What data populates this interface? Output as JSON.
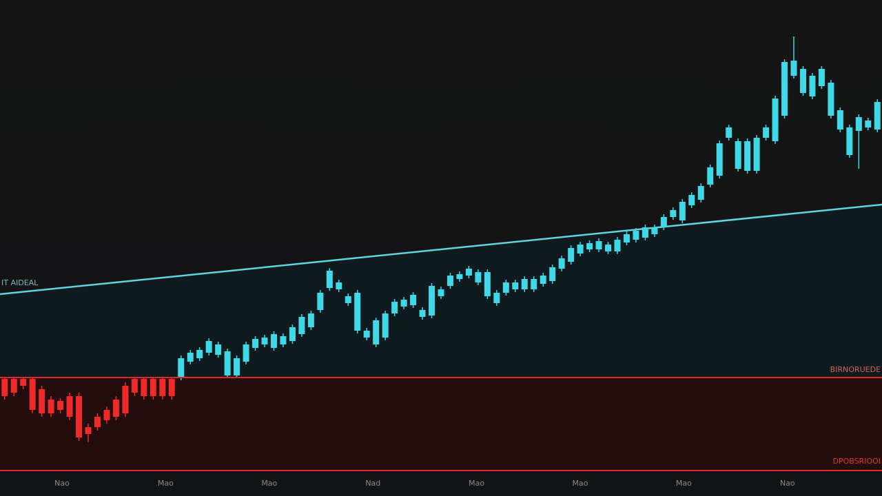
{
  "chart_data": {
    "type": "candlestick",
    "open": [
      140,
      140,
      140,
      140,
      125,
      110,
      108,
      115,
      115,
      70,
      85,
      95,
      110,
      130,
      140,
      140,
      140,
      140,
      140,
      142,
      165,
      170,
      178,
      175,
      145,
      145,
      165,
      185,
      190,
      185,
      190,
      195,
      205,
      215,
      240,
      272,
      270,
      250,
      210,
      200,
      190,
      200,
      235,
      245,
      247,
      230,
      232,
      260,
      275,
      285,
      290,
      280,
      260,
      250,
      265,
      270,
      270,
      270,
      278,
      282,
      300,
      310,
      322,
      328,
      328,
      325,
      325,
      338,
      342,
      345,
      350,
      360,
      375,
      370,
      392,
      400,
      422,
      435,
      490,
      445,
      442,
      442,
      490,
      485,
      522,
      580,
      555,
      550,
      565,
      522,
      502,
      465,
      500,
      505,
      502
    ],
    "high": [
      142,
      142,
      142,
      142,
      130,
      115,
      112,
      120,
      120,
      75,
      90,
      100,
      115,
      135,
      142,
      142,
      142,
      142,
      142,
      174,
      182,
      186,
      199,
      194,
      184,
      174,
      194,
      202,
      204,
      209,
      206,
      219,
      234,
      239,
      269,
      301,
      284,
      264,
      269,
      214,
      229,
      239,
      256,
      259,
      266,
      244,
      279,
      274,
      294,
      296,
      304,
      299,
      299,
      269,
      284,
      284,
      289,
      289,
      294,
      306,
      319,
      334,
      339,
      341,
      344,
      339,
      346,
      354,
      359,
      364,
      364,
      379,
      389,
      401,
      411,
      424,
      451,
      486,
      509,
      489,
      489,
      494,
      509,
      551,
      604,
      637,
      594,
      584,
      594,
      574,
      534,
      509,
      524,
      519,
      546
    ],
    "low": [
      110,
      115,
      125,
      90,
      85,
      85,
      90,
      80,
      50,
      48,
      65,
      75,
      80,
      85,
      115,
      110,
      110,
      110,
      110,
      138,
      161,
      166,
      174,
      171,
      141,
      141,
      161,
      181,
      186,
      181,
      186,
      191,
      201,
      211,
      236,
      268,
      266,
      246,
      206,
      196,
      186,
      196,
      231,
      241,
      243,
      226,
      228,
      256,
      271,
      281,
      286,
      276,
      256,
      246,
      261,
      266,
      266,
      266,
      274,
      278,
      296,
      306,
      318,
      324,
      324,
      321,
      321,
      334,
      338,
      341,
      346,
      356,
      371,
      366,
      388,
      396,
      418,
      431,
      486,
      441,
      438,
      438,
      486,
      481,
      518,
      576,
      551,
      546,
      561,
      518,
      498,
      461,
      445,
      501,
      498
    ],
    "close": [
      115,
      120,
      130,
      95,
      90,
      90,
      95,
      85,
      55,
      60,
      70,
      80,
      85,
      90,
      120,
      115,
      115,
      115,
      115,
      170,
      178,
      182,
      195,
      190,
      180,
      170,
      190,
      198,
      200,
      205,
      202,
      215,
      230,
      235,
      265,
      297,
      280,
      260,
      265,
      210,
      225,
      235,
      252,
      255,
      262,
      240,
      275,
      270,
      290,
      292,
      300,
      295,
      295,
      265,
      280,
      280,
      285,
      285,
      290,
      302,
      315,
      330,
      335,
      337,
      340,
      335,
      342,
      350,
      355,
      360,
      360,
      375,
      385,
      397,
      407,
      420,
      447,
      482,
      505,
      485,
      485,
      490,
      505,
      547,
      600,
      602,
      590,
      580,
      590,
      570,
      530,
      505,
      520,
      515,
      542
    ],
    "up_color": "#3fd8e6",
    "down_color": "#ee2a2a",
    "ylim": [
      0,
      690
    ],
    "trendline": [
      263,
      393
    ],
    "trendline_color": "#5fd6e0",
    "levels": [
      142,
      7
    ],
    "level_color": "#e02828",
    "x_labels": [
      "Nao",
      "Mao",
      "Mao",
      "Nad",
      "Mao",
      "Mao",
      "Mao",
      "Nao"
    ],
    "annotations": [
      "IT AIDEAL",
      "BIRNORUEDE",
      "DPOBSRIOOI"
    ]
  }
}
